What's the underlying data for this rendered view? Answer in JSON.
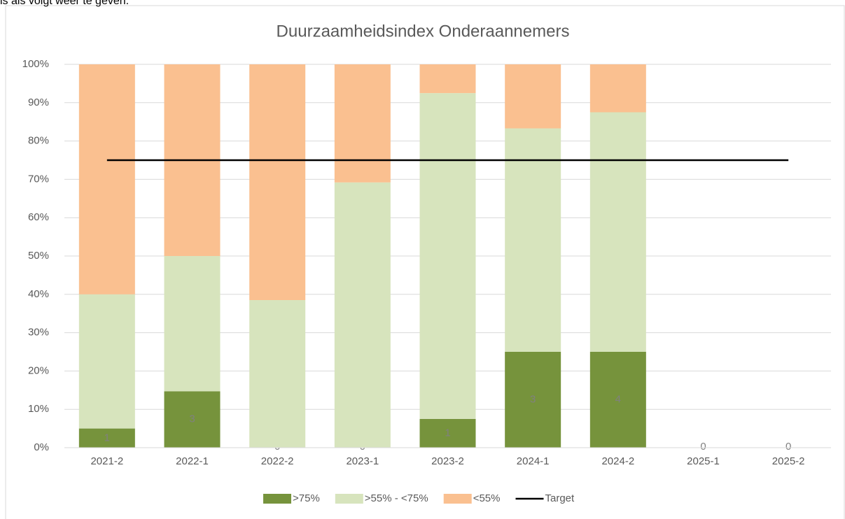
{
  "page_text": "is als volgt weer te geven.",
  "chart_data": {
    "type": "stacked_bar",
    "title": "Duurzaamheidsindex Onderaannemers",
    "categories": [
      "2021-2",
      "2022-1",
      "2022-2",
      "2023-1",
      "2023-2",
      "2024-1",
      "2024-2",
      "2025-1",
      "2025-2"
    ],
    "series": [
      {
        "name": ">75%",
        "color": "#76933c",
        "values": [
          5,
          14.7,
          0,
          0,
          7.5,
          25,
          25,
          0,
          0
        ],
        "counts": [
          1,
          3,
          0,
          0,
          1,
          3,
          4,
          0,
          0
        ]
      },
      {
        "name": ">55% - <75%",
        "color": "#d7e4bd",
        "values": [
          35,
          35.3,
          38.5,
          69.2,
          85,
          58.3,
          62.5,
          0,
          0
        ]
      },
      {
        "name": "<55%",
        "color": "#fac090",
        "values": [
          60,
          50,
          61.5,
          30.8,
          7.5,
          16.7,
          12.5,
          0,
          0
        ]
      },
      {
        "name": "Target",
        "color": "#000000",
        "type": "line",
        "values": [
          75,
          75,
          75,
          75,
          75,
          75,
          75,
          75,
          75
        ]
      }
    ],
    "ylim": [
      0,
      100
    ],
    "yticks": [
      {
        "value": 0,
        "label": "0%"
      },
      {
        "value": 10,
        "label": "10%"
      },
      {
        "value": 20,
        "label": "20%"
      },
      {
        "value": 30,
        "label": "30%"
      },
      {
        "value": 40,
        "label": "40%"
      },
      {
        "value": 50,
        "label": "50%"
      },
      {
        "value": 60,
        "label": "60%"
      },
      {
        "value": 70,
        "label": "70%"
      },
      {
        "value": 80,
        "label": "80%"
      },
      {
        "value": 90,
        "label": "90%"
      },
      {
        "value": 100,
        "label": "100%"
      }
    ],
    "grid": true,
    "legend": "bottom"
  }
}
